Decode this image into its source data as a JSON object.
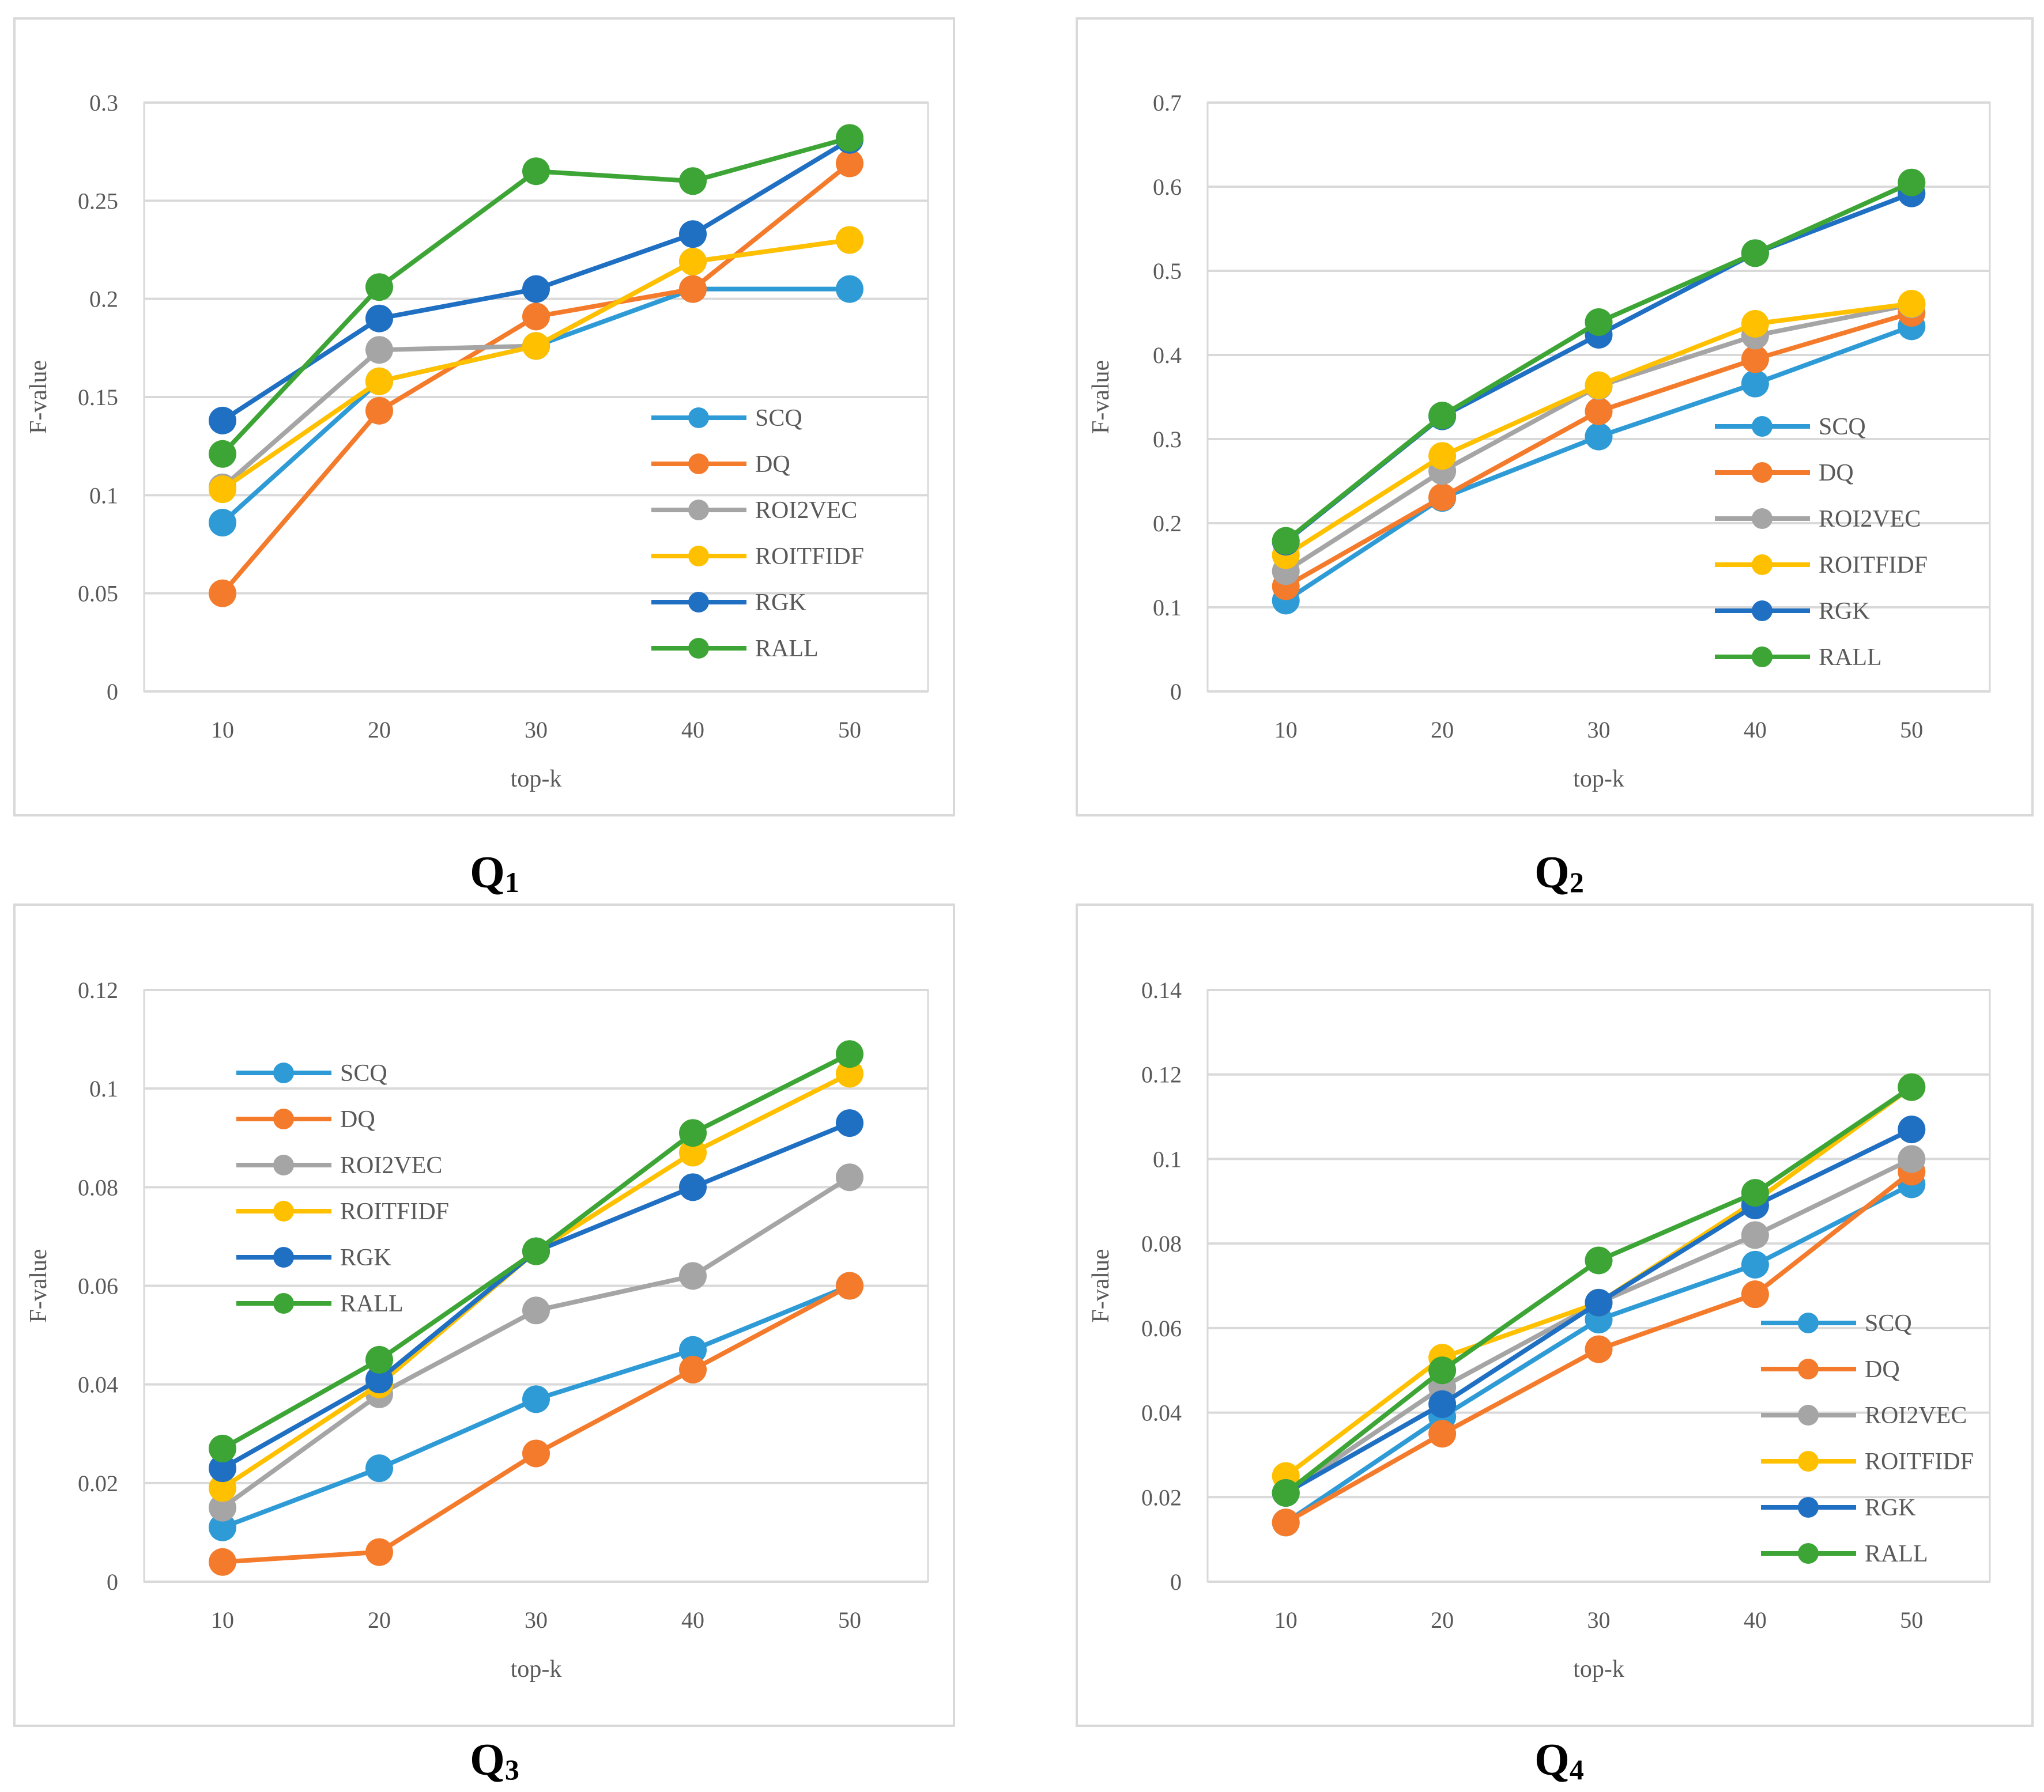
{
  "series_colors": {
    "SCQ": "#2E9BD6",
    "DQ": "#F47B2B",
    "ROI2VEC": "#A5A5A5",
    "ROITFIDF": "#FFC000",
    "RGK": "#1F6FC2",
    "RALL": "#3DA535"
  },
  "chart_data": [
    {
      "type": "line",
      "caption": "Q",
      "caption_sub": "1",
      "xlabel": "top-k",
      "ylabel": "F-value",
      "categories": [
        "10",
        "20",
        "30",
        "40",
        "50"
      ],
      "ylim": [
        0,
        0.3
      ],
      "yticks": [
        "0",
        "0.05",
        "0.1",
        "0.15",
        "0.2",
        "0.25",
        "0.3"
      ],
      "legend_position": "bottom-right",
      "series": [
        {
          "name": "SCQ",
          "values": [
            0.086,
            0.158,
            0.176,
            0.205,
            0.205
          ]
        },
        {
          "name": "DQ",
          "values": [
            0.05,
            0.143,
            0.191,
            0.205,
            0.269
          ]
        },
        {
          "name": "ROI2VEC",
          "values": [
            0.104,
            0.174,
            0.176,
            0.219,
            0.23
          ]
        },
        {
          "name": "ROITFIDF",
          "values": [
            0.103,
            0.158,
            0.176,
            0.219,
            0.23
          ]
        },
        {
          "name": "RGK",
          "values": [
            0.138,
            0.19,
            0.205,
            0.233,
            0.281
          ]
        },
        {
          "name": "RALL",
          "values": [
            0.121,
            0.206,
            0.265,
            0.26,
            0.282
          ]
        }
      ]
    },
    {
      "type": "line",
      "caption": "Q",
      "caption_sub": "2",
      "xlabel": "top-k",
      "ylabel": "F-value",
      "categories": [
        "10",
        "20",
        "30",
        "40",
        "50"
      ],
      "ylim": [
        0,
        0.7
      ],
      "yticks": [
        "0",
        "0.1",
        "0.2",
        "0.3",
        "0.4",
        "0.5",
        "0.6",
        "0.7"
      ],
      "legend_position": "bottom-right",
      "series": [
        {
          "name": "SCQ",
          "values": [
            0.108,
            0.23,
            0.303,
            0.366,
            0.434
          ]
        },
        {
          "name": "DQ",
          "values": [
            0.125,
            0.231,
            0.333,
            0.395,
            0.45
          ]
        },
        {
          "name": "ROI2VEC",
          "values": [
            0.143,
            0.262,
            0.363,
            0.423,
            0.46
          ]
        },
        {
          "name": "ROITFIDF",
          "values": [
            0.162,
            0.28,
            0.364,
            0.437,
            0.461
          ]
        },
        {
          "name": "RGK",
          "values": [
            0.178,
            0.327,
            0.424,
            0.521,
            0.592
          ]
        },
        {
          "name": "RALL",
          "values": [
            0.179,
            0.328,
            0.439,
            0.521,
            0.605
          ]
        }
      ]
    },
    {
      "type": "line",
      "caption": "Q",
      "caption_sub": "3",
      "xlabel": "top-k",
      "ylabel": "F-value",
      "categories": [
        "10",
        "20",
        "30",
        "40",
        "50"
      ],
      "ylim": [
        0,
        0.12
      ],
      "yticks": [
        "0",
        "0.02",
        "0.04",
        "0.06",
        "0.08",
        "0.1",
        "0.12"
      ],
      "legend_position": "top-left",
      "series": [
        {
          "name": "SCQ",
          "values": [
            0.011,
            0.023,
            0.037,
            0.047,
            0.06
          ]
        },
        {
          "name": "DQ",
          "values": [
            0.004,
            0.006,
            0.026,
            0.043,
            0.06
          ]
        },
        {
          "name": "ROI2VEC",
          "values": [
            0.015,
            0.038,
            0.055,
            0.062,
            0.082
          ]
        },
        {
          "name": "ROITFIDF",
          "values": [
            0.019,
            0.04,
            0.067,
            0.087,
            0.103
          ]
        },
        {
          "name": "RGK",
          "values": [
            0.023,
            0.041,
            0.067,
            0.08,
            0.093
          ]
        },
        {
          "name": "RALL",
          "values": [
            0.027,
            0.045,
            0.067,
            0.091,
            0.107
          ]
        }
      ]
    },
    {
      "type": "line",
      "caption": "Q",
      "caption_sub": "4",
      "xlabel": "top-k",
      "ylabel": "F-value",
      "categories": [
        "10",
        "20",
        "30",
        "40",
        "50"
      ],
      "ylim": [
        0,
        0.14
      ],
      "yticks": [
        "0",
        "0.02",
        "0.04",
        "0.06",
        "0.08",
        "0.1",
        "0.12",
        "0.14"
      ],
      "legend_position": "bottom-right",
      "series": [
        {
          "name": "SCQ",
          "values": [
            0.014,
            0.039,
            0.062,
            0.075,
            0.094
          ]
        },
        {
          "name": "DQ",
          "values": [
            0.014,
            0.035,
            0.055,
            0.068,
            0.097
          ]
        },
        {
          "name": "ROI2VEC",
          "values": [
            0.021,
            0.046,
            0.066,
            0.082,
            0.1
          ]
        },
        {
          "name": "ROITFIDF",
          "values": [
            0.025,
            0.053,
            0.066,
            0.09,
            0.117
          ]
        },
        {
          "name": "RGK",
          "values": [
            0.021,
            0.042,
            0.066,
            0.089,
            0.107
          ]
        },
        {
          "name": "RALL",
          "values": [
            0.021,
            0.05,
            0.076,
            0.092,
            0.117
          ]
        }
      ]
    }
  ]
}
